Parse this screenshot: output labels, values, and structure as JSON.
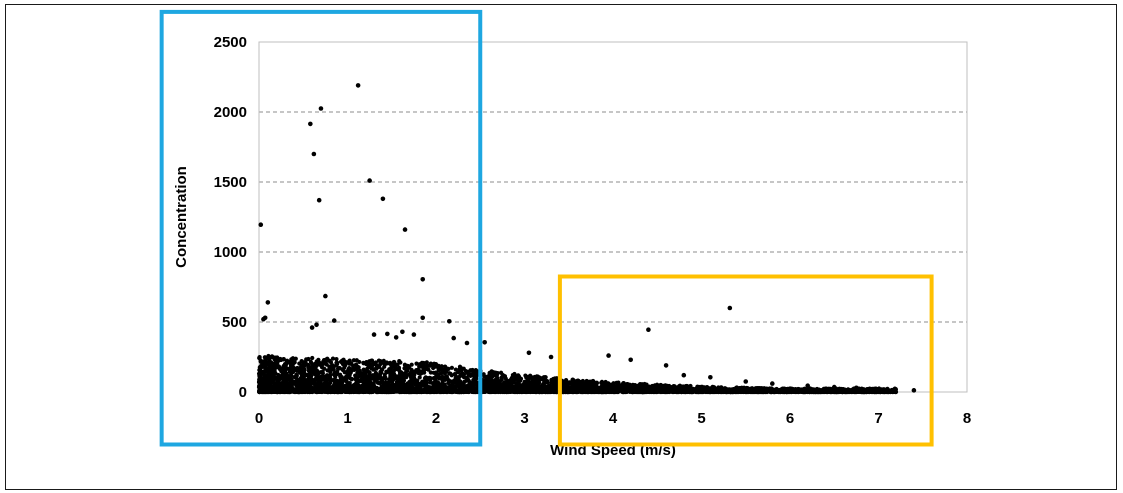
{
  "chart_data": {
    "type": "scatter",
    "title": "",
    "xlabel": "Wind Speed (m/s)",
    "ylabel": "Concentration",
    "xlim": [
      0,
      8
    ],
    "ylim": [
      0,
      2500
    ],
    "x_ticks": [
      "0",
      "1",
      "2",
      "3",
      "4",
      "5",
      "6",
      "7",
      "8"
    ],
    "y_ticks": [
      "0",
      "500",
      "1000",
      "1500",
      "2000",
      "2500"
    ],
    "grid": "horizontal dashed",
    "marker_color": "#000000",
    "series": [
      {
        "values": [
          [
            0.02,
            1195
          ],
          [
            0.07,
            530
          ],
          [
            0.1,
            640
          ],
          [
            0.05,
            520
          ],
          [
            0.58,
            1915
          ],
          [
            0.62,
            1700
          ],
          [
            0.7,
            2025
          ],
          [
            0.68,
            1370
          ],
          [
            1.12,
            2190
          ],
          [
            1.25,
            1510
          ],
          [
            1.4,
            1380
          ],
          [
            1.65,
            1160
          ],
          [
            1.85,
            805
          ],
          [
            0.75,
            685
          ],
          [
            0.85,
            510
          ],
          [
            1.85,
            530
          ],
          [
            2.15,
            505
          ],
          [
            0.6,
            460
          ],
          [
            0.65,
            480
          ],
          [
            1.3,
            410
          ],
          [
            1.45,
            415
          ],
          [
            1.55,
            390
          ],
          [
            1.62,
            430
          ],
          [
            1.75,
            410
          ],
          [
            2.2,
            385
          ],
          [
            2.35,
            350
          ],
          [
            2.55,
            355
          ],
          [
            3.05,
            280
          ],
          [
            3.3,
            250
          ],
          [
            3.95,
            260
          ],
          [
            4.4,
            445
          ],
          [
            4.2,
            230
          ],
          [
            4.6,
            190
          ],
          [
            4.8,
            120
          ],
          [
            5.32,
            600
          ],
          [
            5.1,
            105
          ],
          [
            5.5,
            75
          ],
          [
            5.8,
            60
          ],
          [
            6.2,
            45
          ],
          [
            6.5,
            35
          ],
          [
            6.75,
            30
          ],
          [
            6.95,
            12
          ],
          [
            7.4,
            12
          ]
        ]
      }
    ],
    "annotations": [
      {
        "shape": "rectangle",
        "color": "#1ea7e1",
        "x_range": [
          -1.1,
          2.5
        ],
        "y_range": [
          -375,
          2715
        ]
      },
      {
        "shape": "rectangle",
        "color": "#ffc000",
        "x_range": [
          3.4,
          7.6
        ],
        "y_range": [
          -375,
          825
        ]
      }
    ]
  }
}
